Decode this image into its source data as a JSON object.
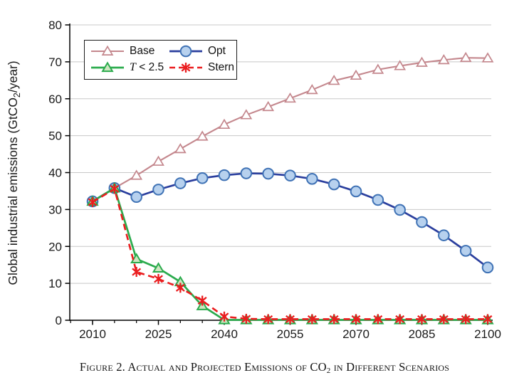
{
  "caption": {
    "prefix": "Figure 2. Actual and Projected Emissions of CO",
    "subscript": "2",
    "suffix": " in Different Scenarios"
  },
  "chart_data": {
    "type": "line",
    "title": "",
    "xlabel": "",
    "ylabel": {
      "prefix": "Global industrial emissions (GtCO",
      "subscript": "2",
      "suffix": "/year)"
    },
    "xlim": [
      2005,
      2101
    ],
    "ylim": [
      0,
      80
    ],
    "x_ticks": [
      2010,
      2025,
      2040,
      2055,
      2070,
      2085,
      2100
    ],
    "x_minor_tick_step": 5,
    "y_ticks": [
      0,
      10,
      20,
      30,
      40,
      50,
      60,
      70,
      80
    ],
    "grid": "horizontal",
    "grid_color": "#c8c8c8",
    "axis_color": "#000000",
    "legend_position": "top-left-inside",
    "x": [
      2010,
      2015,
      2020,
      2025,
      2030,
      2035,
      2040,
      2045,
      2050,
      2055,
      2060,
      2065,
      2070,
      2075,
      2080,
      2085,
      2090,
      2095,
      2100
    ],
    "series": [
      {
        "name": "Base",
        "legend_italic": "",
        "legend_text": "Base",
        "color": "#c4878d",
        "line": "solid",
        "line_width": 2.1,
        "marker": "triangle-open",
        "marker_fill": "#ffffff",
        "marker_stroke": "#c4878d",
        "values": [
          32.2,
          35.8,
          39.2,
          43.0,
          46.4,
          49.8,
          53.0,
          55.6,
          57.8,
          60.1,
          62.4,
          64.9,
          66.3,
          67.9,
          68.9,
          69.8,
          70.5,
          71.1,
          71.0
        ]
      },
      {
        "name": "Opt",
        "legend_italic": "",
        "legend_text": "Opt",
        "color": "#2b3f9e",
        "line": "solid",
        "line_width": 2.7,
        "marker": "circle",
        "marker_fill": "#b7d1ee",
        "marker_stroke": "#3f72b5",
        "values": [
          32.2,
          35.8,
          33.4,
          35.4,
          37.1,
          38.5,
          39.3,
          39.8,
          39.7,
          39.2,
          38.3,
          36.8,
          34.9,
          32.6,
          29.9,
          26.6,
          23.0,
          18.8,
          14.3
        ]
      },
      {
        "name": "T < 2.5",
        "legend_italic": "T",
        "legend_text": " < 2.5",
        "color": "#2bab4d",
        "line": "solid",
        "line_width": 2.7,
        "marker": "triangle",
        "marker_fill": "#cde6c0",
        "marker_stroke": "#2bab4d",
        "values": [
          32.2,
          35.8,
          16.6,
          14.1,
          10.4,
          3.9,
          0.1,
          0.1,
          0.1,
          0.1,
          0.1,
          0.1,
          0.1,
          0.1,
          0.1,
          0.1,
          0.1,
          0.1,
          0.1
        ]
      },
      {
        "name": "Stern",
        "legend_italic": "",
        "legend_text": "Stern",
        "color": "#ea1d1f",
        "line": "dashed",
        "line_width": 2.6,
        "marker": "asterisk",
        "marker_fill": "none",
        "marker_stroke": "#ea1d1f",
        "values": [
          32.0,
          35.6,
          13.1,
          11.2,
          8.8,
          5.3,
          1.0,
          0.4,
          0.3,
          0.3,
          0.3,
          0.3,
          0.3,
          0.3,
          0.3,
          0.3,
          0.3,
          0.3,
          0.3
        ]
      }
    ]
  }
}
